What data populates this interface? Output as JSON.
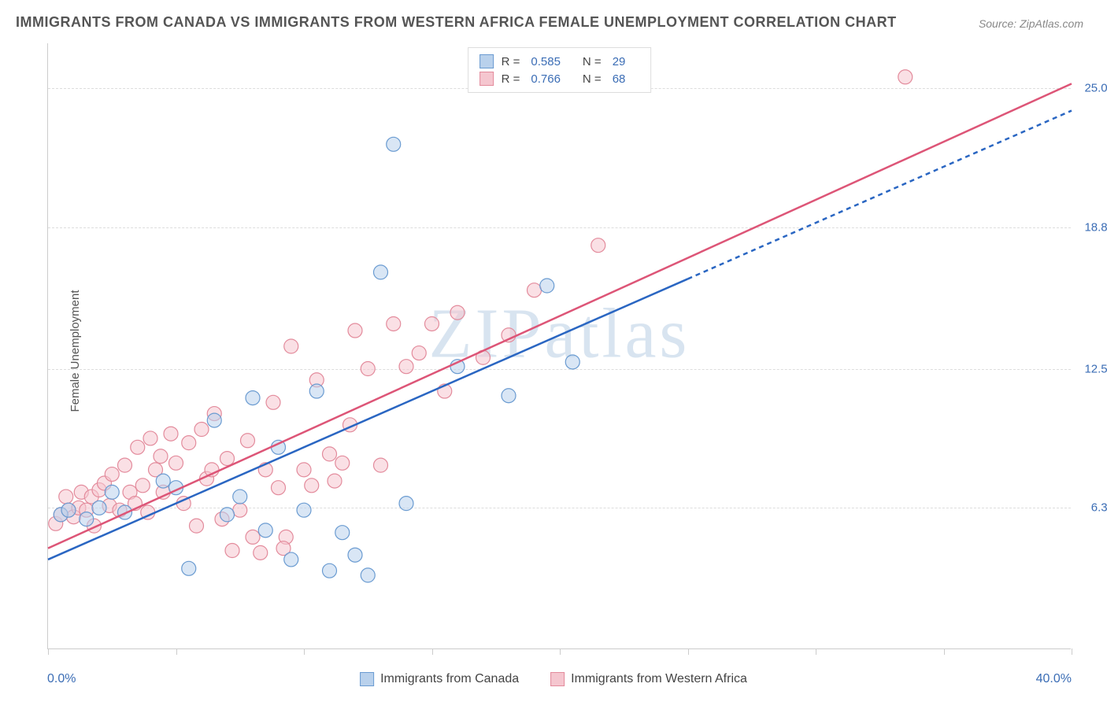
{
  "title": "IMMIGRANTS FROM CANADA VS IMMIGRANTS FROM WESTERN AFRICA FEMALE UNEMPLOYMENT CORRELATION CHART",
  "source": "Source: ZipAtlas.com",
  "ylabel": "Female Unemployment",
  "watermark": "ZIPatlas",
  "chart": {
    "type": "scatter",
    "xlim": [
      0,
      40
    ],
    "ylim": [
      0,
      27
    ],
    "x_min_label": "0.0%",
    "x_max_label": "40.0%",
    "yticks": [
      6.3,
      12.5,
      18.8,
      25.0
    ],
    "ytick_labels": [
      "6.3%",
      "12.5%",
      "18.8%",
      "25.0%"
    ],
    "xtick_positions": [
      0,
      5,
      10,
      15,
      20,
      25,
      30,
      35,
      40
    ],
    "background_color": "#ffffff",
    "grid_color": "#dddddd",
    "axis_color": "#cccccc",
    "label_color": "#3b6db5",
    "marker_radius": 9,
    "marker_opacity": 0.55,
    "line_width": 2.5
  },
  "series": {
    "canada": {
      "label": "Immigrants from Canada",
      "color_fill": "#b9d1ec",
      "color_stroke": "#6a9bd1",
      "line_color": "#2a66c2",
      "r_value": "0.585",
      "n_value": "29",
      "trend": {
        "x1": 0,
        "y1": 4.0,
        "x2": 25,
        "y2": 16.5,
        "dash_x2": 40,
        "dash_y2": 24.0
      },
      "points": [
        [
          0.5,
          6.0
        ],
        [
          0.8,
          6.2
        ],
        [
          1.5,
          5.8
        ],
        [
          2.0,
          6.3
        ],
        [
          2.5,
          7.0
        ],
        [
          3.0,
          6.1
        ],
        [
          4.5,
          7.5
        ],
        [
          5.0,
          7.2
        ],
        [
          5.5,
          3.6
        ],
        [
          6.5,
          10.2
        ],
        [
          7.0,
          6.0
        ],
        [
          7.5,
          6.8
        ],
        [
          8.0,
          11.2
        ],
        [
          8.5,
          5.3
        ],
        [
          9.0,
          9.0
        ],
        [
          9.5,
          4.0
        ],
        [
          10.0,
          6.2
        ],
        [
          10.5,
          11.5
        ],
        [
          11.0,
          3.5
        ],
        [
          11.5,
          5.2
        ],
        [
          12.0,
          4.2
        ],
        [
          12.5,
          3.3
        ],
        [
          13.0,
          16.8
        ],
        [
          13.5,
          22.5
        ],
        [
          14.0,
          6.5
        ],
        [
          16.0,
          12.6
        ],
        [
          18.0,
          11.3
        ],
        [
          19.5,
          16.2
        ],
        [
          20.5,
          12.8
        ]
      ]
    },
    "wafrica": {
      "label": "Immigrants from Western Africa",
      "color_fill": "#f5c6cf",
      "color_stroke": "#e38b9c",
      "line_color": "#dd5577",
      "r_value": "0.766",
      "n_value": "68",
      "trend": {
        "x1": 0,
        "y1": 4.5,
        "x2": 40,
        "y2": 25.2
      },
      "points": [
        [
          0.3,
          5.6
        ],
        [
          0.5,
          6.0
        ],
        [
          0.7,
          6.8
        ],
        [
          0.8,
          6.2
        ],
        [
          1.0,
          5.9
        ],
        [
          1.2,
          6.3
        ],
        [
          1.3,
          7.0
        ],
        [
          1.5,
          6.2
        ],
        [
          1.7,
          6.8
        ],
        [
          1.8,
          5.5
        ],
        [
          2.0,
          7.1
        ],
        [
          2.2,
          7.4
        ],
        [
          2.4,
          6.4
        ],
        [
          2.5,
          7.8
        ],
        [
          2.8,
          6.2
        ],
        [
          3.0,
          8.2
        ],
        [
          3.2,
          7.0
        ],
        [
          3.4,
          6.5
        ],
        [
          3.5,
          9.0
        ],
        [
          3.7,
          7.3
        ],
        [
          3.9,
          6.1
        ],
        [
          4.0,
          9.4
        ],
        [
          4.2,
          8.0
        ],
        [
          4.4,
          8.6
        ],
        [
          4.5,
          7.0
        ],
        [
          4.8,
          9.6
        ],
        [
          5.0,
          8.3
        ],
        [
          5.3,
          6.5
        ],
        [
          5.5,
          9.2
        ],
        [
          5.8,
          5.5
        ],
        [
          6.0,
          9.8
        ],
        [
          6.2,
          7.6
        ],
        [
          6.4,
          8.0
        ],
        [
          6.5,
          10.5
        ],
        [
          6.8,
          5.8
        ],
        [
          7.0,
          8.5
        ],
        [
          7.2,
          4.4
        ],
        [
          7.5,
          6.2
        ],
        [
          7.8,
          9.3
        ],
        [
          8.0,
          5.0
        ],
        [
          8.3,
          4.3
        ],
        [
          8.5,
          8.0
        ],
        [
          8.8,
          11.0
        ],
        [
          9.0,
          7.2
        ],
        [
          9.3,
          5.0
        ],
        [
          9.5,
          13.5
        ],
        [
          10.0,
          8.0
        ],
        [
          10.3,
          7.3
        ],
        [
          10.5,
          12.0
        ],
        [
          11.0,
          8.7
        ],
        [
          11.2,
          7.5
        ],
        [
          11.5,
          8.3
        ],
        [
          11.8,
          10.0
        ],
        [
          12.0,
          14.2
        ],
        [
          12.5,
          12.5
        ],
        [
          13.0,
          8.2
        ],
        [
          13.5,
          14.5
        ],
        [
          14.0,
          12.6
        ],
        [
          14.5,
          13.2
        ],
        [
          15.0,
          14.5
        ],
        [
          15.5,
          11.5
        ],
        [
          16.0,
          15.0
        ],
        [
          17.0,
          13.0
        ],
        [
          18.0,
          14.0
        ],
        [
          19.0,
          16.0
        ],
        [
          21.5,
          18.0
        ],
        [
          33.5,
          25.5
        ],
        [
          9.2,
          4.5
        ]
      ]
    }
  },
  "legend_top": {
    "r_label": "R =",
    "n_label": "N ="
  }
}
